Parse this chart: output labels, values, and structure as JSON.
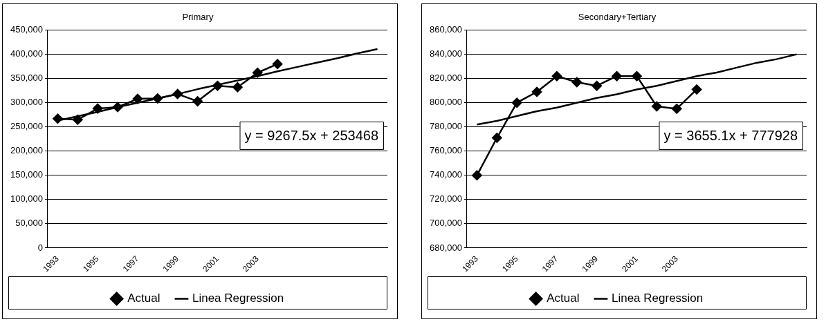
{
  "chart_data": [
    {
      "type": "line",
      "title": "Primary",
      "categories": [
        "1993",
        null,
        "1995",
        null,
        "1997",
        null,
        "1999",
        null,
        "2001",
        null,
        "2003",
        null,
        null,
        null,
        null,
        null,
        null
      ],
      "series": [
        {
          "name": "Actual",
          "color": "#000000",
          "marker": "diamond",
          "values": [
            267000,
            265000,
            288000,
            291000,
            308000,
            309000,
            318000,
            303000,
            335000,
            332000,
            362000,
            380000,
            null,
            null,
            null,
            null,
            null
          ]
        },
        {
          "name": "Linea Regression",
          "color": "#000000",
          "marker": "none",
          "values": [
            263000,
            272000,
            281000,
            291000,
            300000,
            309000,
            318000,
            328000,
            337000,
            346000,
            355000,
            365000,
            374000,
            383000,
            392000,
            402000,
            411000
          ]
        }
      ],
      "ylim": [
        0,
        450000
      ],
      "yticks": [
        0,
        {
          "value": 50000,
          "label": "50,000"
        },
        {
          "value": 100000,
          "label": "100,000"
        },
        {
          "value": 150000,
          "label": "150,000"
        },
        {
          "value": 200000,
          "label": "200,000"
        },
        {
          "value": 250000,
          "label": "250,000"
        },
        {
          "value": 300000,
          "label": "300,000"
        },
        {
          "value": 350000,
          "label": "350,000"
        },
        {
          "value": 400000,
          "label": "400,000"
        },
        {
          "value": 450000,
          "label": "450,000"
        }
      ],
      "grid": "y",
      "legend": "bottom",
      "line_style": "solid",
      "annotations": [
        "y = 9267.5x + 253468"
      ]
    },
    {
      "type": "line",
      "title": "Secondary+Tertiary",
      "categories": [
        "1993",
        null,
        "1995",
        null,
        "1997",
        null,
        "1999",
        null,
        "2001",
        null,
        "2003",
        null,
        null,
        null,
        null,
        null,
        null
      ],
      "series": [
        {
          "name": "Actual",
          "color": "#000000",
          "marker": "diamond",
          "values": [
            740000,
            771000,
            800000,
            809000,
            822000,
            817000,
            814000,
            822000,
            822000,
            797000,
            795000,
            811000,
            null,
            null,
            null,
            null,
            null
          ]
        },
        {
          "name": "Linea Regression",
          "color": "#000000",
          "marker": "none",
          "values": [
            782000,
            785000,
            789000,
            793000,
            796000,
            800000,
            804000,
            807000,
            811000,
            814000,
            818000,
            822000,
            825000,
            829000,
            833000,
            836000,
            840000
          ]
        }
      ],
      "ylim": [
        680000,
        860000
      ],
      "yticks": [
        {
          "value": 680000,
          "label": "680,000"
        },
        {
          "value": 700000,
          "label": "700,000"
        },
        {
          "value": 720000,
          "label": "720,000"
        },
        {
          "value": 740000,
          "label": "740,000"
        },
        {
          "value": 760000,
          "label": "760,000"
        },
        {
          "value": 780000,
          "label": "780,000"
        },
        {
          "value": 800000,
          "label": "800,000"
        },
        {
          "value": 820000,
          "label": "820,000"
        },
        {
          "value": 840000,
          "label": "840,000"
        },
        {
          "value": 860000,
          "label": "860,000"
        }
      ],
      "grid": "y",
      "legend": "bottom",
      "line_style": "solid",
      "annotations": [
        "y = 3655.1x + 777928"
      ]
    }
  ]
}
